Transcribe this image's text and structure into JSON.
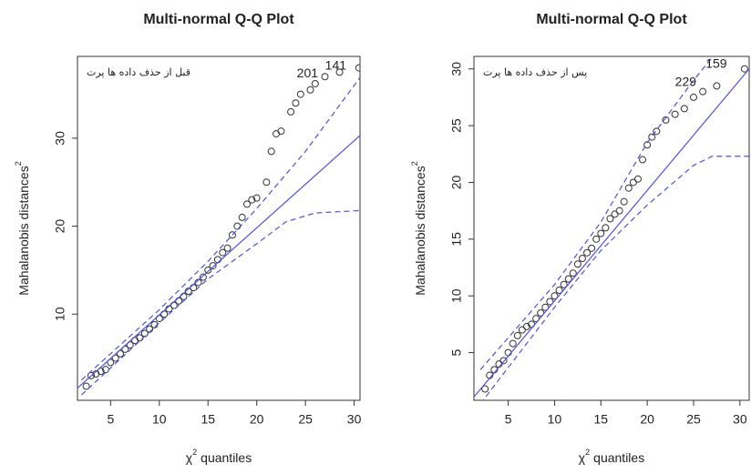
{
  "chart_data": [
    {
      "type": "scatter",
      "title": "Multi-normal Q-Q Plot",
      "x_label": {
        "symbol": "χ",
        "sup": "2",
        "text": "quantiles"
      },
      "y_label": {
        "text": "Mahalanobis distances",
        "sup": "2"
      },
      "annotation": "قبل از حذف داده ها پرت",
      "xlim": [
        1.6,
        30.6
      ],
      "ylim": [
        0.2,
        39.3
      ],
      "xticks": [
        5,
        10,
        15,
        20,
        25,
        30
      ],
      "yticks": [
        10,
        20,
        30
      ],
      "series": [
        {
          "mode": "points",
          "color": "#333333",
          "x": [
            2.5,
            3,
            3.5,
            4,
            4.5,
            5,
            5.5,
            6,
            6.5,
            7,
            7.5,
            8,
            8.5,
            9,
            9.5,
            10,
            10.5,
            11,
            11.5,
            12,
            12.5,
            13,
            13.5,
            14,
            14.5,
            15,
            15.5,
            16,
            16.5,
            17,
            17.5,
            18,
            18.5,
            19,
            19.5,
            20,
            21,
            21.5,
            22,
            22.5,
            23.5,
            24,
            24.5,
            25.5,
            26,
            27,
            28.5,
            30.5
          ],
          "values": [
            1.8,
            3,
            3.2,
            3.5,
            3.7,
            4.5,
            5,
            5.5,
            6,
            6.5,
            7,
            7.3,
            7.8,
            8.3,
            8.8,
            9.5,
            10,
            10.6,
            11,
            11.5,
            12,
            12.6,
            13,
            13.6,
            14.2,
            15,
            15.5,
            16.2,
            17,
            17.5,
            19,
            20,
            21,
            22.5,
            23,
            23.2,
            25,
            28.5,
            30.5,
            30.8,
            33,
            34,
            35,
            35.5,
            36.2,
            37,
            37.5,
            38
          ]
        },
        {
          "mode": "line",
          "color": "#5050e0",
          "dash": false,
          "x": [
            1,
            31
          ],
          "values": [
            1,
            30.7
          ]
        },
        {
          "mode": "line",
          "color": "#5050e0",
          "dash": true,
          "x": [
            2,
            10,
            15,
            20,
            25,
            30,
            31
          ],
          "values": [
            2.5,
            10.5,
            16,
            22,
            28.5,
            36,
            37.5
          ]
        },
        {
          "mode": "line",
          "color": "#5050e0",
          "dash": true,
          "x": [
            2,
            10,
            15,
            20,
            23,
            26,
            31
          ],
          "values": [
            0.8,
            9,
            14,
            18,
            20.5,
            21.5,
            21.8
          ]
        }
      ],
      "point_labels": [
        {
          "text": "201",
          "x": 26.3,
          "y": 37.3
        },
        {
          "text": "141",
          "x": 29.2,
          "y": 38.2
        }
      ]
    },
    {
      "type": "scatter",
      "title": "Multi-normal Q-Q Plot",
      "x_label": {
        "symbol": "χ",
        "sup": "2",
        "text": "quantiles"
      },
      "y_label": {
        "text": "Mahalanobis distances",
        "sup": "2"
      },
      "annotation": "پس از حذف داده ها پرت",
      "xlim": [
        1.3,
        31
      ],
      "ylim": [
        0.8,
        31.1
      ],
      "xticks": [
        5,
        10,
        15,
        20,
        25,
        30
      ],
      "yticks": [
        5,
        10,
        15,
        20,
        25,
        30
      ],
      "series": [
        {
          "mode": "points",
          "color": "#333333",
          "x": [
            2.5,
            3,
            3.5,
            4,
            4.5,
            5,
            5.5,
            6,
            6.5,
            7,
            7.5,
            8,
            8.5,
            9,
            9.5,
            10,
            10.5,
            11,
            11.5,
            12,
            12.5,
            13,
            13.5,
            14,
            14.5,
            15,
            15.5,
            16,
            16.5,
            17,
            17.5,
            18,
            18.5,
            19,
            19.5,
            20,
            20.5,
            21,
            22,
            23,
            24,
            25,
            26,
            27.5,
            30.5
          ],
          "values": [
            1.8,
            3,
            3.5,
            4,
            4.3,
            5,
            5.8,
            6.5,
            7,
            7.3,
            7.5,
            8,
            8.5,
            9,
            9.5,
            10,
            10.5,
            11,
            11.5,
            12,
            12.8,
            13.3,
            13.8,
            14.2,
            15,
            15.5,
            16,
            16.8,
            17.2,
            17.5,
            18.3,
            19.5,
            20,
            20.3,
            22,
            23.3,
            24,
            24.5,
            25.5,
            26,
            26.5,
            27.5,
            28,
            28.5,
            30
          ]
        },
        {
          "mode": "line",
          "color": "#5050e0",
          "dash": false,
          "x": [
            1,
            31
          ],
          "values": [
            0.8,
            30
          ]
        },
        {
          "mode": "line",
          "color": "#5050e0",
          "dash": true,
          "x": [
            2,
            10,
            15,
            20,
            25,
            27
          ],
          "values": [
            3.5,
            11,
            16.5,
            23.5,
            29,
            31
          ]
        },
        {
          "mode": "line",
          "color": "#5050e0",
          "dash": true,
          "x": [
            2,
            10,
            15,
            20,
            25,
            27,
            31
          ],
          "values": [
            0.5,
            9,
            14,
            18,
            21.5,
            22.3,
            22.3
          ]
        }
      ],
      "point_labels": [
        {
          "text": "229",
          "x": 25.3,
          "y": 28.8
        },
        {
          "text": "159",
          "x": 28.6,
          "y": 30.4
        }
      ]
    }
  ]
}
